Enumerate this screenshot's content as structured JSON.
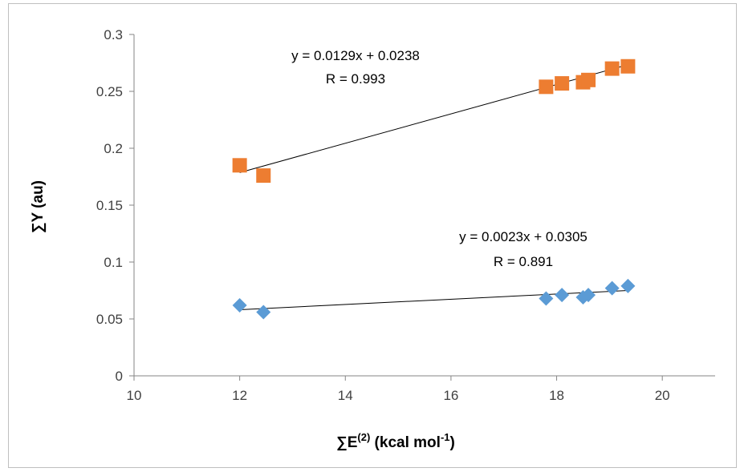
{
  "chart_data": {
    "type": "scatter",
    "xlabel": {
      "main": "∑E",
      "sup": "(2)",
      "mid": " (kcal mol",
      "sup2": "-1",
      "end": ")"
    },
    "ylabel": "∑Y  (au)",
    "xlim": [
      10,
      21
    ],
    "ylim": [
      0,
      0.3
    ],
    "xticks": [
      10,
      12,
      14,
      16,
      18,
      20
    ],
    "yticks": [
      0,
      0.05,
      0.1,
      0.15,
      0.2,
      0.25,
      0.3
    ],
    "xtick_labels": [
      "10",
      "12",
      "14",
      "16",
      "18",
      "20"
    ],
    "ytick_labels": [
      "0",
      "0.05",
      "0.1",
      "0.15",
      "0.2",
      "0.25",
      "0.3"
    ],
    "grid": false,
    "legend": "none",
    "series": [
      {
        "marker": "square",
        "color": "#ED7D31",
        "x": [
          12.0,
          12.45,
          17.8,
          18.1,
          18.5,
          18.6,
          19.05,
          19.35
        ],
        "y": [
          0.185,
          0.176,
          0.254,
          0.257,
          0.258,
          0.26,
          0.27,
          0.272
        ],
        "trendline": {
          "slope": 0.0129,
          "intercept": 0.0238,
          "x_range": [
            12.0,
            19.35
          ],
          "equation": "y = 0.0129x + 0.0238",
          "r_text": "R = 0.993"
        }
      },
      {
        "marker": "diamond",
        "color": "#5B9BD5",
        "x": [
          12.0,
          12.45,
          17.8,
          18.1,
          18.5,
          18.6,
          19.05,
          19.35
        ],
        "y": [
          0.062,
          0.056,
          0.068,
          0.071,
          0.069,
          0.071,
          0.077,
          0.079
        ],
        "trendline": {
          "slope": 0.0023,
          "intercept": 0.0305,
          "x_range": [
            12.0,
            19.35
          ],
          "equation": "y = 0.0023x + 0.0305",
          "r_text": "R = 0.891"
        }
      }
    ]
  }
}
